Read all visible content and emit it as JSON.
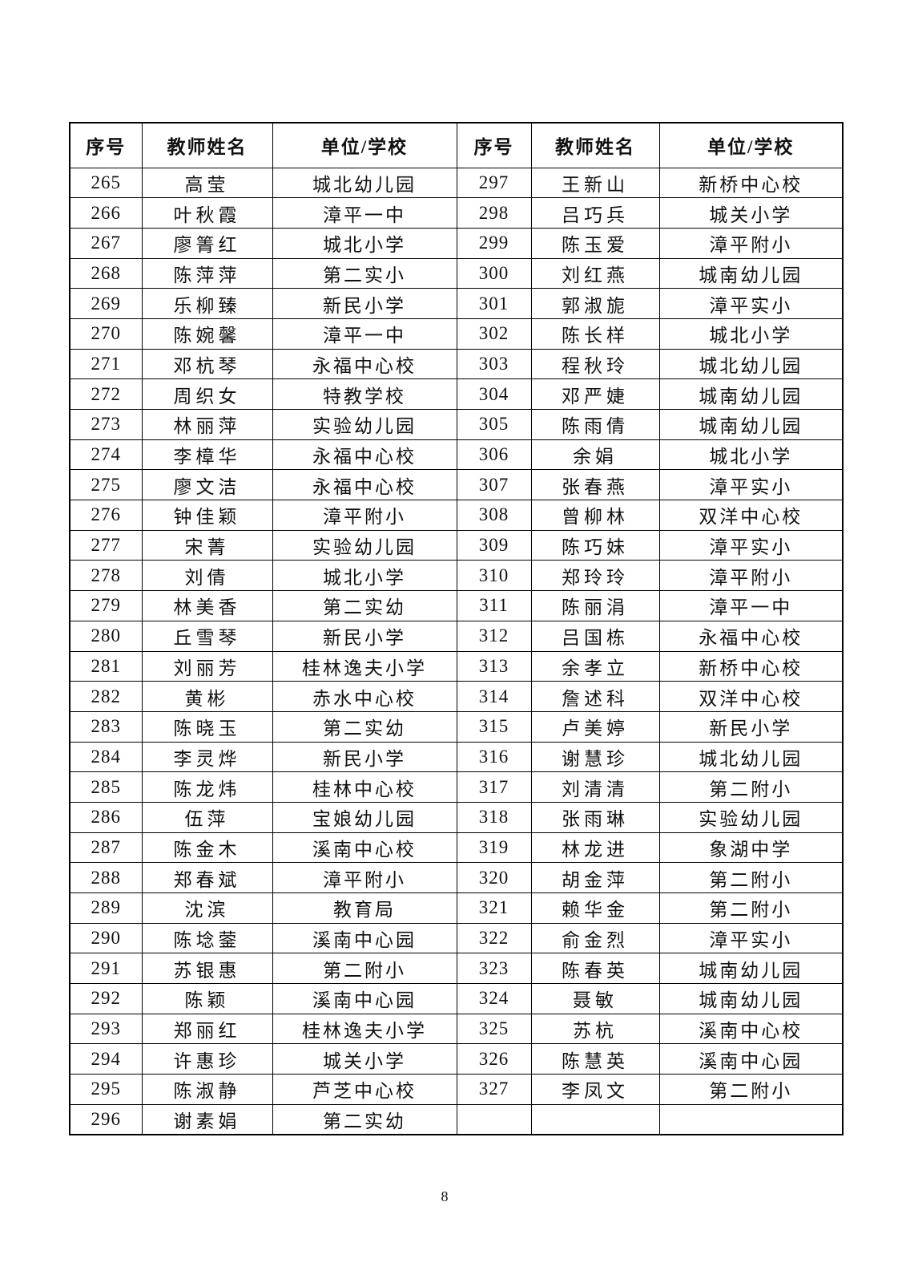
{
  "page": {
    "number": "8"
  },
  "table": {
    "headers": [
      "序号",
      "教师姓名",
      "单位/学校",
      "序号",
      "教师姓名",
      "单位/学校"
    ],
    "rows": [
      {
        "cells": [
          "265",
          "高莹",
          "城北幼儿园",
          "297",
          "王新山",
          "新桥中心校"
        ]
      },
      {
        "cells": [
          "266",
          "叶秋霞",
          "漳平一中",
          "298",
          "吕巧兵",
          "城关小学"
        ]
      },
      {
        "cells": [
          "267",
          "廖箐红",
          "城北小学",
          "299",
          "陈玉爱",
          "漳平附小"
        ]
      },
      {
        "cells": [
          "268",
          "陈萍萍",
          "第二实小",
          "300",
          "刘红燕",
          "城南幼儿园"
        ]
      },
      {
        "cells": [
          "269",
          "乐柳臻",
          "新民小学",
          "301",
          "郭淑旎",
          "漳平实小"
        ]
      },
      {
        "cells": [
          "270",
          "陈婉馨",
          "漳平一中",
          "302",
          "陈长样",
          "城北小学"
        ]
      },
      {
        "cells": [
          "271",
          "邓杭琴",
          "永福中心校",
          "303",
          "程秋玲",
          "城北幼儿园"
        ]
      },
      {
        "cells": [
          "272",
          "周织女",
          "特教学校",
          "304",
          "邓严婕",
          "城南幼儿园"
        ]
      },
      {
        "cells": [
          "273",
          "林丽萍",
          "实验幼儿园",
          "305",
          "陈雨倩",
          "城南幼儿园"
        ]
      },
      {
        "cells": [
          "274",
          "李樟华",
          "永福中心校",
          "306",
          "余娟",
          "城北小学"
        ]
      },
      {
        "cells": [
          "275",
          "廖文洁",
          "永福中心校",
          "307",
          "张春燕",
          "漳平实小"
        ]
      },
      {
        "cells": [
          "276",
          "钟佳颖",
          "漳平附小",
          "308",
          "曾柳林",
          "双洋中心校"
        ]
      },
      {
        "cells": [
          "277",
          "宋菁",
          "实验幼儿园",
          "309",
          "陈巧妹",
          "漳平实小"
        ]
      },
      {
        "cells": [
          "278",
          "刘倩",
          "城北小学",
          "310",
          "郑玲玲",
          "漳平附小"
        ]
      },
      {
        "cells": [
          "279",
          "林美香",
          "第二实幼",
          "311",
          "陈丽涓",
          "漳平一中"
        ]
      },
      {
        "cells": [
          "280",
          "丘雪琴",
          "新民小学",
          "312",
          "吕国栋",
          "永福中心校"
        ]
      },
      {
        "cells": [
          "281",
          "刘丽芳",
          "桂林逸夫小学",
          "313",
          "余孝立",
          "新桥中心校"
        ]
      },
      {
        "cells": [
          "282",
          "黄彬",
          "赤水中心校",
          "314",
          "詹述科",
          "双洋中心校"
        ]
      },
      {
        "cells": [
          "283",
          "陈晓玉",
          "第二实幼",
          "315",
          "卢美婷",
          "新民小学"
        ]
      },
      {
        "cells": [
          "284",
          "李灵烨",
          "新民小学",
          "316",
          "谢慧珍",
          "城北幼儿园"
        ]
      },
      {
        "cells": [
          "285",
          "陈龙炜",
          "桂林中心校",
          "317",
          "刘清清",
          "第二附小"
        ]
      },
      {
        "cells": [
          "286",
          "伍萍",
          "宝娘幼儿园",
          "318",
          "张雨琳",
          "实验幼儿园"
        ]
      },
      {
        "cells": [
          "287",
          "陈金木",
          "溪南中心校",
          "319",
          "林龙进",
          "象湖中学"
        ]
      },
      {
        "cells": [
          "288",
          "郑春斌",
          "漳平附小",
          "320",
          "胡金萍",
          "第二附小"
        ]
      },
      {
        "cells": [
          "289",
          "沈滨",
          "教育局",
          "321",
          "赖华金",
          "第二附小"
        ]
      },
      {
        "cells": [
          "290",
          "陈埝蓥",
          "溪南中心园",
          "322",
          "俞金烈",
          "漳平实小"
        ]
      },
      {
        "cells": [
          "291",
          "苏银惠",
          "第二附小",
          "323",
          "陈春英",
          "城南幼儿园"
        ]
      },
      {
        "cells": [
          "292",
          "陈颖",
          "溪南中心园",
          "324",
          "聂敏",
          "城南幼儿园"
        ]
      },
      {
        "cells": [
          "293",
          "郑丽红",
          "桂林逸夫小学",
          "325",
          "苏杭",
          "溪南中心校"
        ]
      },
      {
        "cells": [
          "294",
          "许惠珍",
          "城关小学",
          "326",
          "陈慧英",
          "溪南中心园"
        ]
      },
      {
        "cells": [
          "295",
          "陈淑静",
          "芦芝中心校",
          "327",
          "李凤文",
          "第二附小"
        ]
      },
      {
        "cells": [
          "296",
          "谢素娟",
          "第二实幼",
          "",
          "",
          ""
        ]
      }
    ]
  }
}
